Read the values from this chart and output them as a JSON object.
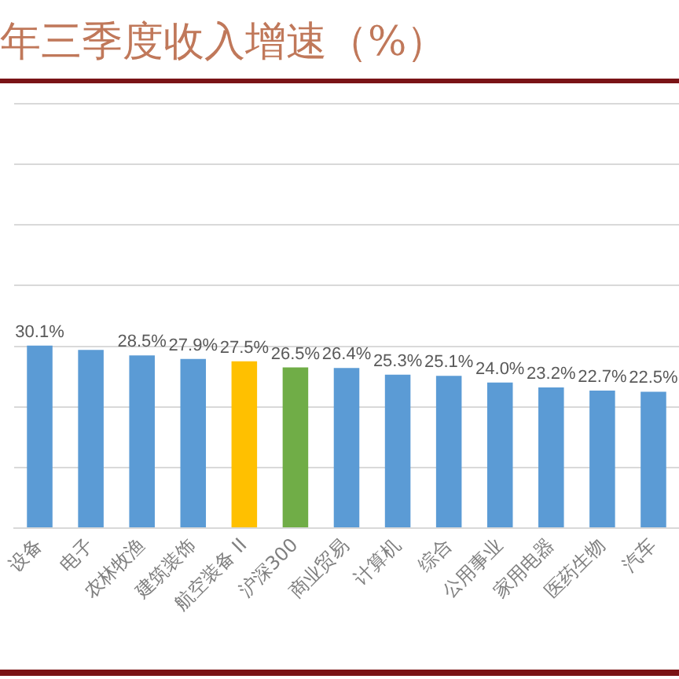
{
  "chart_data": {
    "type": "bar",
    "title": "年三季度收入增速（%）",
    "categories": [
      "设备",
      "电子",
      "农林牧渔",
      "建筑装饰",
      "航空装备 II",
      "沪深300",
      "商业贸易",
      "计算机",
      "综合",
      "公用事业",
      "家用电器",
      "医药生物",
      "汽车"
    ],
    "values": [
      30.1,
      29.4,
      28.5,
      27.9,
      27.5,
      26.5,
      26.4,
      25.3,
      25.1,
      24.0,
      23.2,
      22.7,
      22.5
    ],
    "colors": [
      "#5b9bd5",
      "#5b9bd5",
      "#5b9bd5",
      "#5b9bd5",
      "#ffc000",
      "#70ad47",
      "#5b9bd5",
      "#5b9bd5",
      "#5b9bd5",
      "#5b9bd5",
      "#5b9bd5",
      "#5b9bd5",
      "#5b9bd5"
    ],
    "value_labels": [
      "30.1%",
      null,
      "28.5%",
      "27.9%",
      "27.5%",
      "26.5%",
      "26.4%",
      "25.3%",
      "25.1%",
      "24.0%",
      "23.2%",
      "22.7%",
      "22.5%"
    ],
    "ylim": [
      0,
      70
    ],
    "yticks": [
      {
        "value": 0,
        "label": null
      },
      {
        "value": 10,
        "label": null
      },
      {
        "value": 20,
        "label": null
      },
      {
        "value": 30,
        "label": null
      },
      {
        "value": 40,
        "label": null
      },
      {
        "value": 50,
        "label": null
      },
      {
        "value": 60,
        "label": null
      },
      {
        "value": 70,
        "label": null
      }
    ],
    "grid": "y",
    "tick_labels": "x"
  }
}
